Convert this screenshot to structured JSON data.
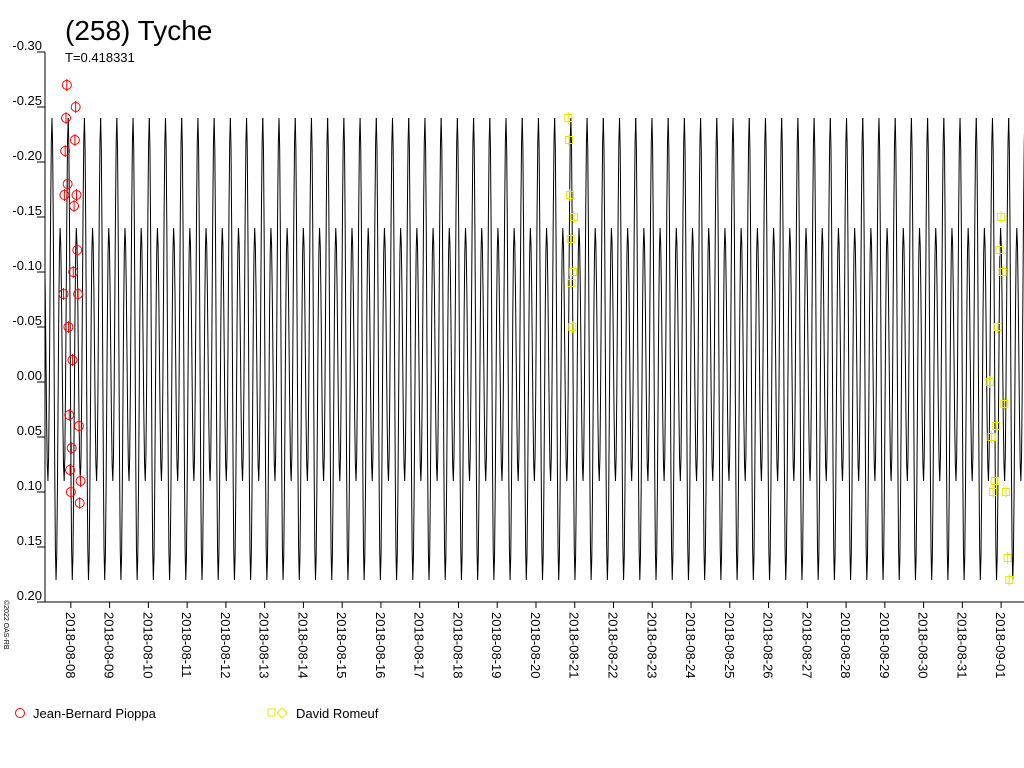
{
  "chart_data": {
    "type": "lightcurve",
    "title": "(258) Tyche",
    "subtitle": "T=0.418331",
    "period": 0.418331,
    "copyright": "©2022 OAS-RB",
    "xlim": [
      "2018-08-07T08:00",
      "2018-09-01T14:10"
    ],
    "xticks": [
      "2018-08-08",
      "2018-08-09",
      "2018-08-10",
      "2018-08-11",
      "2018-08-12",
      "2018-08-13",
      "2018-08-14",
      "2018-08-15",
      "2018-08-16",
      "2018-08-17",
      "2018-08-18",
      "2018-08-19",
      "2018-08-20",
      "2018-08-21",
      "2018-08-22",
      "2018-08-23",
      "2018-08-24",
      "2018-08-25",
      "2018-08-26",
      "2018-08-27",
      "2018-08-28",
      "2018-08-29",
      "2018-08-30",
      "2018-08-31",
      "2018-09-01"
    ],
    "ylim": [
      -0.3,
      0.2
    ],
    "y_inverted": true,
    "yticks": [
      {
        "value": -0.3,
        "label": "-0.30"
      },
      {
        "value": -0.25,
        "label": "-0.25"
      },
      {
        "value": -0.2,
        "label": "-0.20"
      },
      {
        "value": -0.15,
        "label": "-0.15"
      },
      {
        "value": -0.1,
        "label": "-0.10"
      },
      {
        "value": -0.05,
        "label": "-0.05"
      },
      {
        "value": 0,
        "label": "0.00"
      },
      {
        "value": 0.05,
        "label": "0.05"
      },
      {
        "value": 0.1,
        "label": "0.10"
      },
      {
        "value": 0.15,
        "label": "0.15"
      },
      {
        "value": 0.2,
        "label": "0.20"
      }
    ],
    "model": {
      "color": "#000000",
      "epoch": "2018-08-07T12:20",
      "values": [
        -0.24,
        0.18,
        -0.14,
        0.09
      ]
    },
    "series": [
      {
        "name": "Jean-Bernard Pioppa",
        "color": "#ff0000",
        "marker": "circle",
        "x": [
          "2018-08-07T19:30",
          "2018-08-07T20:00",
          "2018-08-07T20:30",
          "2018-08-07T21:00",
          "2018-08-07T21:30",
          "2018-08-07T22:00",
          "2018-08-07T22:30",
          "2018-08-07T23:00",
          "2018-08-07T23:30",
          "2018-08-08T00:00",
          "2018-08-08T00:30",
          "2018-08-08T01:00",
          "2018-08-08T01:30",
          "2018-08-08T02:00",
          "2018-08-08T02:30",
          "2018-08-08T03:00",
          "2018-08-08T03:30",
          "2018-08-08T04:00",
          "2018-08-08T04:30",
          "2018-08-08T05:00",
          "2018-08-08T05:30",
          "2018-08-08T06:00"
        ],
        "values": [
          -0.08,
          -0.17,
          -0.21,
          -0.24,
          -0.27,
          -0.18,
          -0.05,
          0.03,
          0.08,
          0.1,
          0.06,
          -0.02,
          -0.1,
          -0.16,
          -0.22,
          -0.25,
          -0.17,
          -0.12,
          -0.08,
          0.04,
          0.11,
          0.09
        ]
      },
      {
        "name": "David Romeuf",
        "color": "#e8e800",
        "marker": "square",
        "x": [
          "2018-08-20T20:00",
          "2018-08-20T20:30",
          "2018-08-20T21:00",
          "2018-08-20T21:30",
          "2018-08-20T22:00",
          "2018-08-20T22:30",
          "2018-08-20T23:00",
          "2018-08-20T23:30",
          "2018-08-31T17:00",
          "2018-08-31T18:00",
          "2018-08-31T19:00",
          "2018-08-31T20:00",
          "2018-08-31T21:00",
          "2018-08-31T22:00",
          "2018-08-31T23:00",
          "2018-09-01T00:00",
          "2018-09-01T01:00",
          "2018-09-01T02:00",
          "2018-09-01T03:00",
          "2018-09-01T04:00",
          "2018-09-01T05:00"
        ],
        "values": [
          -0.24,
          -0.22,
          -0.17,
          -0.13,
          -0.09,
          -0.05,
          -0.1,
          -0.15,
          0,
          0.05,
          0.1,
          0.09,
          0.04,
          -0.05,
          -0.12,
          -0.15,
          -0.1,
          0.02,
          0.1,
          0.16,
          0.18
        ]
      }
    ]
  }
}
